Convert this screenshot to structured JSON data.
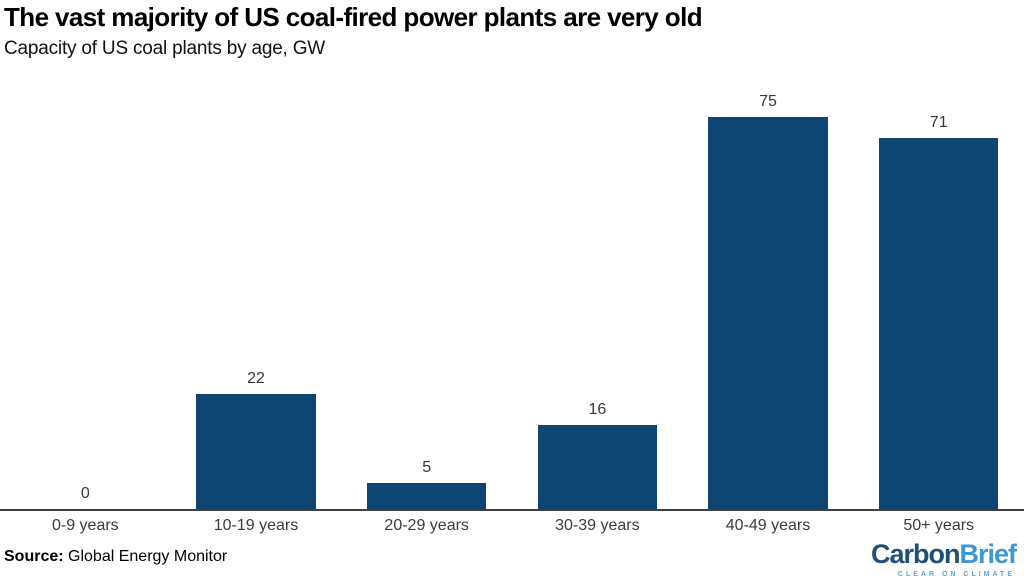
{
  "header": {
    "title": "The vast majority of US coal-fired power plants are very old",
    "subtitle": "Capacity of US coal plants by age, GW"
  },
  "chart_data": {
    "type": "bar",
    "title": "The vast majority of US coal-fired power plants are very old",
    "subtitle": "Capacity of US coal plants by age, GW",
    "categories": [
      "0-9 years",
      "10-19 years",
      "20-29 years",
      "30-39 years",
      "40-49 years",
      "50+ years"
    ],
    "values": [
      0,
      22,
      5,
      16,
      75,
      71
    ],
    "value_labels": [
      "0",
      "22",
      "5",
      "16",
      "75",
      "71"
    ],
    "xlabel": "",
    "ylabel": "",
    "unit": "GW",
    "ylim": [
      0,
      81
    ],
    "grid": false,
    "legend": false,
    "bar_color": "#0e4572",
    "axis_line_color": "#3f3f3f",
    "label_color": "#383838"
  },
  "footer": {
    "source_label": "Source:",
    "source_value": " Global Energy Monitor"
  },
  "logo": {
    "part1": "Carbon",
    "part2": "Brief",
    "tagline": "CLEAR ON CLIMATE",
    "part1_color": "#1e4e79",
    "part2_color": "#3e97d4",
    "tagline_color": "#56a5db"
  }
}
